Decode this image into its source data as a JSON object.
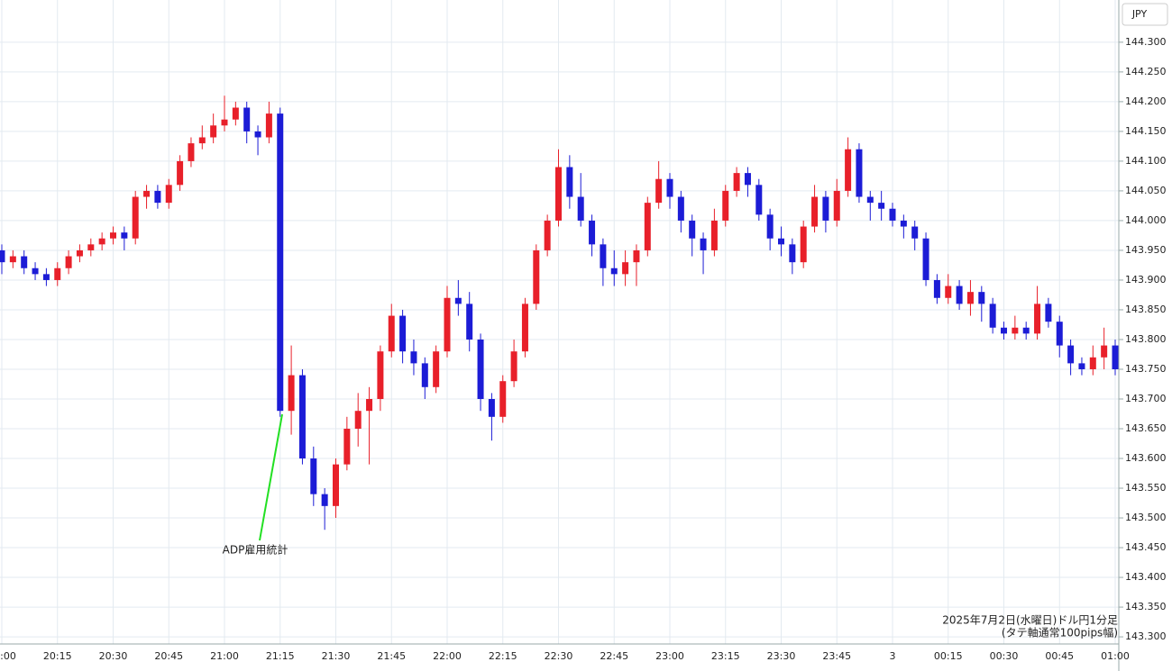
{
  "chart_data": {
    "type": "candlestick",
    "currency": "JPY",
    "annotation": "ADP雇用統計",
    "caption": [
      "2025年7月2日(水曜日)ドル円1分足",
      "(タテ軸通常100pips幅)"
    ],
    "up_color": "#e8202a",
    "down_color": "#1c1cd6",
    "grid": true,
    "ylim": [
      143.288,
      144.371
    ],
    "yticks": [
      {
        "value": 143.3,
        "label": "143.300"
      },
      {
        "value": 143.35,
        "label": "143.350"
      },
      {
        "value": 143.4,
        "label": "143.400"
      },
      {
        "value": 143.45,
        "label": "143.450"
      },
      {
        "value": 143.5,
        "label": "143.500"
      },
      {
        "value": 143.55,
        "label": "143.550"
      },
      {
        "value": 143.6,
        "label": "143.600"
      },
      {
        "value": 143.65,
        "label": "143.650"
      },
      {
        "value": 143.7,
        "label": "143.700"
      },
      {
        "value": 143.75,
        "label": "143.750"
      },
      {
        "value": 143.8,
        "label": "143.800"
      },
      {
        "value": 143.85,
        "label": "143.850"
      },
      {
        "value": 143.9,
        "label": "143.900"
      },
      {
        "value": 143.95,
        "label": "143.950"
      },
      {
        "value": 144.0,
        "label": "144.000"
      },
      {
        "value": 144.05,
        "label": "144.050"
      },
      {
        "value": 144.1,
        "label": "144.100"
      },
      {
        "value": 144.15,
        "label": "144.150"
      },
      {
        "value": 144.2,
        "label": "144.200"
      },
      {
        "value": 144.25,
        "label": "144.250"
      },
      {
        "value": 144.3,
        "label": "144.300"
      }
    ],
    "categories": [
      "20:00",
      null,
      null,
      null,
      null,
      "20:15",
      null,
      null,
      null,
      null,
      "20:30",
      null,
      null,
      null,
      null,
      "20:45",
      null,
      null,
      null,
      null,
      "21:00",
      null,
      null,
      null,
      null,
      "21:15",
      null,
      null,
      null,
      null,
      "21:30",
      null,
      null,
      null,
      null,
      "21:45",
      null,
      null,
      null,
      null,
      "22:00",
      null,
      null,
      null,
      null,
      "22:15",
      null,
      null,
      null,
      null,
      "22:30",
      null,
      null,
      null,
      null,
      "22:45",
      null,
      null,
      null,
      null,
      "23:00",
      null,
      null,
      null,
      null,
      "23:15",
      null,
      null,
      null,
      null,
      "23:30",
      null,
      null,
      null,
      null,
      "23:45",
      null,
      null,
      null,
      null,
      "3",
      null,
      null,
      null,
      null,
      "00:15",
      null,
      null,
      null,
      null,
      "00:30",
      null,
      null,
      null,
      null,
      "00:45",
      null,
      null,
      null,
      null,
      "01:00"
    ],
    "open": [
      143.95,
      143.93,
      143.94,
      143.92,
      143.91,
      143.9,
      143.92,
      143.94,
      143.95,
      143.96,
      143.97,
      143.98,
      143.97,
      144.04,
      144.05,
      144.03,
      144.06,
      144.1,
      144.13,
      144.14,
      144.16,
      144.17,
      144.19,
      144.15,
      144.14,
      144.18,
      143.68,
      143.74,
      143.6,
      143.54,
      143.52,
      143.59,
      143.65,
      143.68,
      143.7,
      143.78,
      143.84,
      143.78,
      143.76,
      143.72,
      143.78,
      143.87,
      143.86,
      143.8,
      143.7,
      143.67,
      143.73,
      143.78,
      143.86,
      143.95,
      144.0,
      144.09,
      144.04,
      144.0,
      143.96,
      143.92,
      143.91,
      143.93,
      143.95,
      144.03,
      144.07,
      144.04,
      144.0,
      143.97,
      143.95,
      144.0,
      144.05,
      144.08,
      144.06,
      144.01,
      143.97,
      143.96,
      143.93,
      143.99,
      144.04,
      144.0,
      144.05,
      144.12,
      144.04,
      144.03,
      144.02,
      144.0,
      143.99,
      143.97,
      143.9,
      143.87,
      143.89,
      143.86,
      143.88,
      143.86,
      143.82,
      143.81,
      143.82,
      143.81,
      143.86,
      143.83,
      143.79,
      143.76,
      143.75,
      143.77,
      143.79
    ],
    "high": [
      143.96,
      143.95,
      143.95,
      143.93,
      143.92,
      143.93,
      143.95,
      143.96,
      143.97,
      143.98,
      143.99,
      143.99,
      144.05,
      144.06,
      144.06,
      144.07,
      144.11,
      144.14,
      144.16,
      144.18,
      144.21,
      144.2,
      144.2,
      144.16,
      144.2,
      144.19,
      143.79,
      143.75,
      143.62,
      143.55,
      143.6,
      143.67,
      143.71,
      143.72,
      143.79,
      143.86,
      143.85,
      143.8,
      143.77,
      143.79,
      143.89,
      143.9,
      143.88,
      143.81,
      143.71,
      143.74,
      143.8,
      143.87,
      143.96,
      144.01,
      144.12,
      144.11,
      144.08,
      144.01,
      143.97,
      143.95,
      143.95,
      143.96,
      144.04,
      144.1,
      144.08,
      144.05,
      144.01,
      143.98,
      144.02,
      144.06,
      144.09,
      144.09,
      144.07,
      144.02,
      143.99,
      143.97,
      144.0,
      144.06,
      144.05,
      144.07,
      144.14,
      144.13,
      144.05,
      144.05,
      144.03,
      144.01,
      144.0,
      143.98,
      143.91,
      143.91,
      143.9,
      143.9,
      143.89,
      143.87,
      143.83,
      143.84,
      143.83,
      143.89,
      143.87,
      143.84,
      143.8,
      143.77,
      143.79,
      143.82,
      143.8
    ],
    "low": [
      143.91,
      143.92,
      143.91,
      143.9,
      143.89,
      143.89,
      143.91,
      143.93,
      143.94,
      143.95,
      143.96,
      143.95,
      143.96,
      144.02,
      144.02,
      144.02,
      144.05,
      144.09,
      144.12,
      144.13,
      144.15,
      144.16,
      144.13,
      144.11,
      144.13,
      143.67,
      143.64,
      143.59,
      143.52,
      143.48,
      143.5,
      143.58,
      143.62,
      143.59,
      143.68,
      143.77,
      143.76,
      143.74,
      143.7,
      143.71,
      143.77,
      143.84,
      143.78,
      143.68,
      143.63,
      143.66,
      143.72,
      143.77,
      143.85,
      143.94,
      143.99,
      144.02,
      143.99,
      143.94,
      143.89,
      143.89,
      143.89,
      143.89,
      143.94,
      144.02,
      144.02,
      143.98,
      143.94,
      143.91,
      143.94,
      143.99,
      144.04,
      144.04,
      144.0,
      143.95,
      143.94,
      143.91,
      143.92,
      143.98,
      143.98,
      143.99,
      144.04,
      144.03,
      144.0,
      144.0,
      143.99,
      143.97,
      143.95,
      143.89,
      143.86,
      143.86,
      143.85,
      143.84,
      143.83,
      143.81,
      143.8,
      143.8,
      143.8,
      143.8,
      143.82,
      143.77,
      143.74,
      143.74,
      143.74,
      143.75,
      143.74
    ],
    "close": [
      143.93,
      143.94,
      143.92,
      143.91,
      143.9,
      143.92,
      143.94,
      143.95,
      143.96,
      143.97,
      143.98,
      143.97,
      144.04,
      144.05,
      144.03,
      144.06,
      144.1,
      144.13,
      144.14,
      144.16,
      144.17,
      144.19,
      144.15,
      144.14,
      144.18,
      143.68,
      143.74,
      143.6,
      143.54,
      143.52,
      143.59,
      143.65,
      143.68,
      143.7,
      143.78,
      143.84,
      143.78,
      143.76,
      143.72,
      143.78,
      143.87,
      143.86,
      143.8,
      143.7,
      143.67,
      143.73,
      143.78,
      143.86,
      143.95,
      144.0,
      144.09,
      144.04,
      144.0,
      143.96,
      143.92,
      143.91,
      143.93,
      143.95,
      144.03,
      144.07,
      144.04,
      144.0,
      143.97,
      143.95,
      144.0,
      144.05,
      144.08,
      144.06,
      144.01,
      143.97,
      143.96,
      143.93,
      143.99,
      144.04,
      144.0,
      144.05,
      144.12,
      144.04,
      144.03,
      144.02,
      144.0,
      143.99,
      143.97,
      143.9,
      143.87,
      143.89,
      143.86,
      143.88,
      143.86,
      143.82,
      143.81,
      143.82,
      143.81,
      143.86,
      143.83,
      143.79,
      143.76,
      143.75,
      143.77,
      143.79,
      143.75
    ]
  }
}
